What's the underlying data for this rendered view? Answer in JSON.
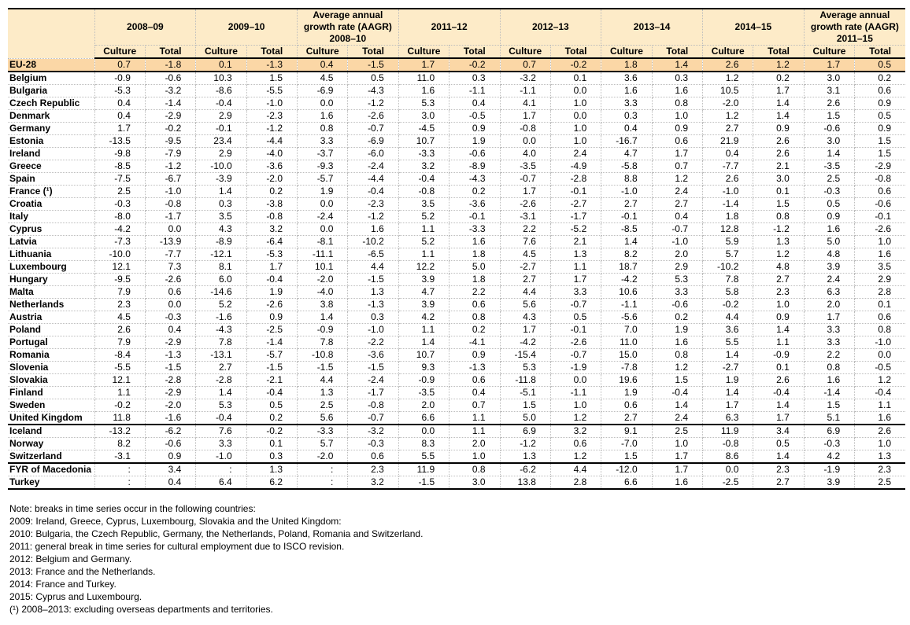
{
  "colors": {
    "header_bg": "#fdebc8",
    "eu_row_bg": "#fbd7a6"
  },
  "table": {
    "groups": [
      "2008–09",
      "2009–10",
      "Average annual growth rate (AAGR) 2008–10",
      "2011–12",
      "2012–13",
      "2013–14",
      "2014–15",
      "Average annual growth rate (AAGR) 2011–15"
    ],
    "sub_culture": "Culture",
    "sub_total": "Total",
    "rows": [
      {
        "name": "EU-28",
        "values": [
          "0.7",
          "-1.8",
          "0.1",
          "-1.3",
          "0.4",
          "-1.5",
          "1.7",
          "-0.2",
          "0.7",
          "-0.2",
          "1.8",
          "1.4",
          "2.6",
          "1.2",
          "1.7",
          "0.5"
        ]
      },
      {
        "name": "Belgium",
        "values": [
          "-0.9",
          "-0.6",
          "10.3",
          "1.5",
          "4.5",
          "0.5",
          "11.0",
          "0.3",
          "-3.2",
          "0.1",
          "3.6",
          "0.3",
          "1.2",
          "0.2",
          "3.0",
          "0.2"
        ]
      },
      {
        "name": "Bulgaria",
        "values": [
          "-5.3",
          "-3.2",
          "-8.6",
          "-5.5",
          "-6.9",
          "-4.3",
          "1.6",
          "-1.1",
          "-1.1",
          "0.0",
          "1.6",
          "1.6",
          "10.5",
          "1.7",
          "3.1",
          "0.6"
        ]
      },
      {
        "name": "Czech Republic",
        "values": [
          "0.4",
          "-1.4",
          "-0.4",
          "-1.0",
          "0.0",
          "-1.2",
          "5.3",
          "0.4",
          "4.1",
          "1.0",
          "3.3",
          "0.8",
          "-2.0",
          "1.4",
          "2.6",
          "0.9"
        ]
      },
      {
        "name": "Denmark",
        "values": [
          "0.4",
          "-2.9",
          "2.9",
          "-2.3",
          "1.6",
          "-2.6",
          "3.0",
          "-0.5",
          "1.7",
          "0.0",
          "0.3",
          "1.0",
          "1.2",
          "1.4",
          "1.5",
          "0.5"
        ]
      },
      {
        "name": "Germany",
        "values": [
          "1.7",
          "-0.2",
          "-0.1",
          "-1.2",
          "0.8",
          "-0.7",
          "-4.5",
          "0.9",
          "-0.8",
          "1.0",
          "0.4",
          "0.9",
          "2.7",
          "0.9",
          "-0.6",
          "0.9"
        ]
      },
      {
        "name": "Estonia",
        "values": [
          "-13.5",
          "-9.5",
          "23.4",
          "-4.4",
          "3.3",
          "-6.9",
          "10.7",
          "1.9",
          "0.0",
          "1.0",
          "-16.7",
          "0.6",
          "21.9",
          "2.6",
          "3.0",
          "1.5"
        ]
      },
      {
        "name": "Ireland",
        "values": [
          "-9.8",
          "-7.9",
          "2.9",
          "-4.0",
          "-3.7",
          "-6.0",
          "-3.3",
          "-0.6",
          "4.0",
          "2.4",
          "4.7",
          "1.7",
          "0.4",
          "2.6",
          "1.4",
          "1.5"
        ]
      },
      {
        "name": "Greece",
        "values": [
          "-8.5",
          "-1.2",
          "-10.0",
          "-3.6",
          "-9.3",
          "-2.4",
          "3.2",
          "-8.9",
          "-3.5",
          "-4.9",
          "-5.8",
          "0.7",
          "-7.7",
          "2.1",
          "-3.5",
          "-2.9"
        ]
      },
      {
        "name": "Spain",
        "values": [
          "-7.5",
          "-6.7",
          "-3.9",
          "-2.0",
          "-5.7",
          "-4.4",
          "-0.4",
          "-4.3",
          "-0.7",
          "-2.8",
          "8.8",
          "1.2",
          "2.6",
          "3.0",
          "2.5",
          "-0.8"
        ]
      },
      {
        "name": "France (¹)",
        "values": [
          "2.5",
          "-1.0",
          "1.4",
          "0.2",
          "1.9",
          "-0.4",
          "-0.8",
          "0.2",
          "1.7",
          "-0.1",
          "-1.0",
          "2.4",
          "-1.0",
          "0.1",
          "-0.3",
          "0.6"
        ]
      },
      {
        "name": "Croatia",
        "values": [
          "-0.3",
          "-0.8",
          "0.3",
          "-3.8",
          "0.0",
          "-2.3",
          "3.5",
          "-3.6",
          "-2.6",
          "-2.7",
          "2.7",
          "2.7",
          "-1.4",
          "1.5",
          "0.5",
          "-0.6"
        ]
      },
      {
        "name": "Italy",
        "values": [
          "-8.0",
          "-1.7",
          "3.5",
          "-0.8",
          "-2.4",
          "-1.2",
          "5.2",
          "-0.1",
          "-3.1",
          "-1.7",
          "-0.1",
          "0.4",
          "1.8",
          "0.8",
          "0.9",
          "-0.1"
        ]
      },
      {
        "name": "Cyprus",
        "values": [
          "-4.2",
          "0.0",
          "4.3",
          "3.2",
          "0.0",
          "1.6",
          "1.1",
          "-3.3",
          "2.2",
          "-5.2",
          "-8.5",
          "-0.7",
          "12.8",
          "-1.2",
          "1.6",
          "-2.6"
        ]
      },
      {
        "name": "Latvia",
        "values": [
          "-7.3",
          "-13.9",
          "-8.9",
          "-6.4",
          "-8.1",
          "-10.2",
          "5.2",
          "1.6",
          "7.6",
          "2.1",
          "1.4",
          "-1.0",
          "5.9",
          "1.3",
          "5.0",
          "1.0"
        ]
      },
      {
        "name": "Lithuania",
        "values": [
          "-10.0",
          "-7.7",
          "-12.1",
          "-5.3",
          "-11.1",
          "-6.5",
          "1.1",
          "1.8",
          "4.5",
          "1.3",
          "8.2",
          "2.0",
          "5.7",
          "1.2",
          "4.8",
          "1.6"
        ]
      },
      {
        "name": "Luxembourg",
        "values": [
          "12.1",
          "7.3",
          "8.1",
          "1.7",
          "10.1",
          "4.4",
          "12.2",
          "5.0",
          "-2.7",
          "1.1",
          "18.7",
          "2.9",
          "-10.2",
          "4.8",
          "3.9",
          "3.5"
        ]
      },
      {
        "name": "Hungary",
        "values": [
          "-9.5",
          "-2.6",
          "6.0",
          "-0.4",
          "-2.0",
          "-1.5",
          "3.9",
          "1.8",
          "2.7",
          "1.7",
          "-4.2",
          "5.3",
          "7.8",
          "2.7",
          "2.4",
          "2.9"
        ]
      },
      {
        "name": "Malta",
        "values": [
          "7.9",
          "0.6",
          "-14.6",
          "1.9",
          "-4.0",
          "1.3",
          "4.7",
          "2.2",
          "4.4",
          "3.3",
          "10.6",
          "3.3",
          "5.8",
          "2.3",
          "6.3",
          "2.8"
        ]
      },
      {
        "name": "Netherlands",
        "values": [
          "2.3",
          "0.0",
          "5.2",
          "-2.6",
          "3.8",
          "-1.3",
          "3.9",
          "0.6",
          "5.6",
          "-0.7",
          "-1.1",
          "-0.6",
          "-0.2",
          "1.0",
          "2.0",
          "0.1"
        ]
      },
      {
        "name": "Austria",
        "values": [
          "4.5",
          "-0.3",
          "-1.6",
          "0.9",
          "1.4",
          "0.3",
          "4.2",
          "0.8",
          "4.3",
          "0.5",
          "-5.6",
          "0.2",
          "4.4",
          "0.9",
          "1.7",
          "0.6"
        ]
      },
      {
        "name": "Poland",
        "values": [
          "2.6",
          "0.4",
          "-4.3",
          "-2.5",
          "-0.9",
          "-1.0",
          "1.1",
          "0.2",
          "1.7",
          "-0.1",
          "7.0",
          "1.9",
          "3.6",
          "1.4",
          "3.3",
          "0.8"
        ]
      },
      {
        "name": "Portugal",
        "values": [
          "7.9",
          "-2.9",
          "7.8",
          "-1.4",
          "7.8",
          "-2.2",
          "1.4",
          "-4.1",
          "-4.2",
          "-2.6",
          "11.0",
          "1.6",
          "5.5",
          "1.1",
          "3.3",
          "-1.0"
        ]
      },
      {
        "name": "Romania",
        "values": [
          "-8.4",
          "-1.3",
          "-13.1",
          "-5.7",
          "-10.8",
          "-3.6",
          "10.7",
          "0.9",
          "-15.4",
          "-0.7",
          "15.0",
          "0.8",
          "1.4",
          "-0.9",
          "2.2",
          "0.0"
        ]
      },
      {
        "name": "Slovenia",
        "values": [
          "-5.5",
          "-1.5",
          "2.7",
          "-1.5",
          "-1.5",
          "-1.5",
          "9.3",
          "-1.3",
          "5.3",
          "-1.9",
          "-7.8",
          "1.2",
          "-2.7",
          "0.1",
          "0.8",
          "-0.5"
        ]
      },
      {
        "name": "Slovakia",
        "values": [
          "12.1",
          "-2.8",
          "-2.8",
          "-2.1",
          "4.4",
          "-2.4",
          "-0.9",
          "0.6",
          "-11.8",
          "0.0",
          "19.6",
          "1.5",
          "1.9",
          "2.6",
          "1.6",
          "1.2"
        ]
      },
      {
        "name": "Finland",
        "values": [
          "1.1",
          "-2.9",
          "1.4",
          "-0.4",
          "1.3",
          "-1.7",
          "-3.5",
          "0.4",
          "-5.1",
          "-1.1",
          "1.9",
          "-0.4",
          "1.4",
          "-0.4",
          "-1.4",
          "-0.4"
        ]
      },
      {
        "name": "Sweden",
        "values": [
          "-0.2",
          "-2.0",
          "5.3",
          "0.5",
          "2.5",
          "-0.8",
          "2.0",
          "0.7",
          "1.5",
          "1.0",
          "0.6",
          "1.4",
          "1.7",
          "1.4",
          "1.5",
          "1.1"
        ]
      },
      {
        "name": "United Kingdom",
        "values": [
          "11.8",
          "-1.6",
          "-0.4",
          "0.2",
          "5.6",
          "-0.7",
          "6.6",
          "1.1",
          "5.0",
          "1.2",
          "2.7",
          "2.4",
          "6.3",
          "1.7",
          "5.1",
          "1.6"
        ]
      },
      {
        "name": "Iceland",
        "values": [
          "-13.2",
          "-6.2",
          "7.6",
          "-0.2",
          "-3.3",
          "-3.2",
          "0.0",
          "1.1",
          "6.9",
          "3.2",
          "9.1",
          "2.5",
          "11.9",
          "3.4",
          "6.9",
          "2.6"
        ]
      },
      {
        "name": "Norway",
        "values": [
          "8.2",
          "-0.6",
          "3.3",
          "0.1",
          "5.7",
          "-0.3",
          "8.3",
          "2.0",
          "-1.2",
          "0.6",
          "-7.0",
          "1.0",
          "-0.8",
          "0.5",
          "-0.3",
          "1.0"
        ]
      },
      {
        "name": "Switzerland",
        "values": [
          "-3.1",
          "0.9",
          "-1.0",
          "0.3",
          "-2.0",
          "0.6",
          "5.5",
          "1.0",
          "1.3",
          "1.2",
          "1.5",
          "1.7",
          "8.6",
          "1.4",
          "4.2",
          "1.3"
        ]
      },
      {
        "name": "FYR of Macedonia",
        "values": [
          ":",
          "3.4",
          ":",
          "1.3",
          ":",
          "2.3",
          "11.9",
          "0.8",
          "-6.2",
          "4.4",
          "-12.0",
          "1.7",
          "0.0",
          "2.3",
          "-1.9",
          "2.3"
        ]
      },
      {
        "name": "Turkey",
        "values": [
          ":",
          "0.4",
          "6.4",
          "6.2",
          ":",
          "3.2",
          "-1.5",
          "3.0",
          "13.8",
          "2.8",
          "6.6",
          "1.6",
          "-2.5",
          "2.7",
          "3.9",
          "2.5"
        ]
      }
    ]
  },
  "notes": [
    "Note: breaks in time series occur in the following countries:",
    "2009: Ireland, Greece, Cyprus, Luxembourg, Slovakia and the United Kingdom:",
    "2010: Bulgaria, the Czech Republic, Germany, the Netherlands, Poland, Romania and Switzerland.",
    "2011: general break in time series for cultural employment due to ISCO revision.",
    "2012: Belgium and Germany.",
    "2013: France and the Netherlands.",
    "2014: France and Turkey.",
    "2015: Cyprus and Luxembourg.",
    "(¹) 2008–2013: excluding overseas departments and territories."
  ]
}
